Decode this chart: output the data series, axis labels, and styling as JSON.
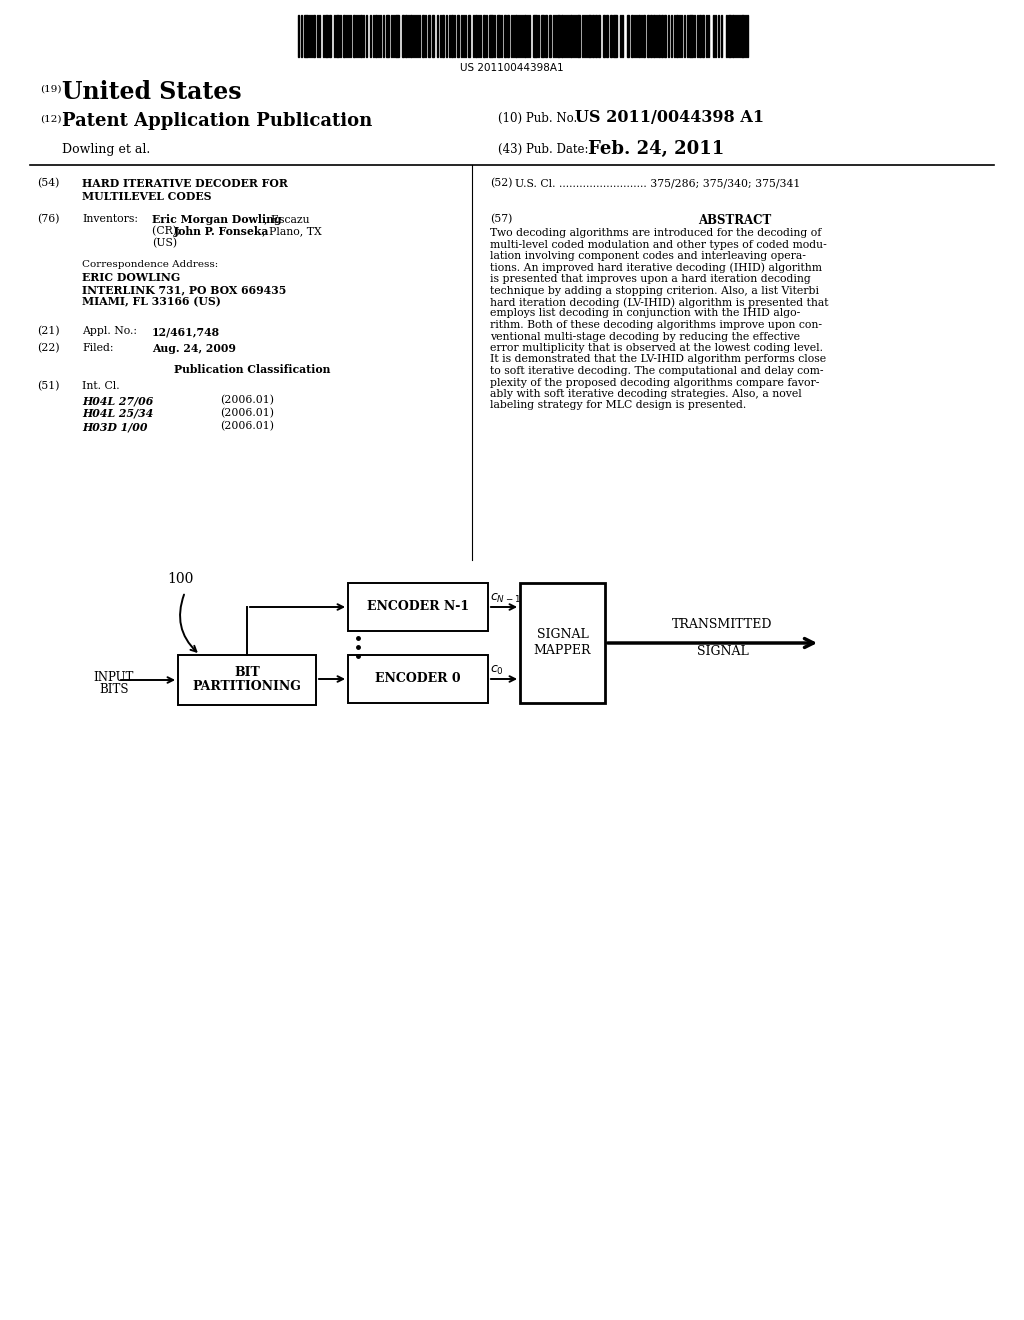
{
  "bg_color": "#ffffff",
  "barcode_text": "US 20110044398A1",
  "header19": "(19)",
  "title19": "United States",
  "header12": "(12)",
  "title12": "Patent Application Publication",
  "pub_no_label": "(10) Pub. No.:",
  "pub_no_value": "US 2011/0044398 A1",
  "pub_date_label": "(43) Pub. Date:",
  "pub_date_value": "Feb. 24, 2011",
  "author": "Dowling et al.",
  "f54_label": "(54)",
  "f54_line1": "HARD ITERATIVE DECODER FOR",
  "f54_line2": "MULTILEVEL CODES",
  "f52_label": "(52)",
  "f52_value": "U.S. Cl. .......................... 375/286; 375/340; 375/341",
  "f76_label": "(76)",
  "f76_field": "Inventors:",
  "inv_bold1": "Eric Morgan Dowling",
  "inv_rest1": ", Escazu",
  "inv_line2a": "(CR); ",
  "inv_bold2": "John P. Fonseka",
  "inv_rest2": ", Plano, TX",
  "inv_line3": "(US)",
  "corr_label": "Correspondence Address:",
  "corr_name": "ERIC DOWLING",
  "corr_line1": "INTERLINK 731, PO BOX 669435",
  "corr_line2": "MIAMI, FL 33166 (US)",
  "f21_label": "(21)",
  "f21_field": "Appl. No.:",
  "f21_value": "12/461,748",
  "f22_label": "(22)",
  "f22_field": "Filed:",
  "f22_value": "Aug. 24, 2009",
  "pub_class": "Publication Classification",
  "f51_label": "(51)",
  "f51_field": "Int. Cl.",
  "int_cl": [
    [
      "H04L 27/06",
      "(2006.01)"
    ],
    [
      "H04L 25/34",
      "(2006.01)"
    ],
    [
      "H03D 1/00",
      "(2006.01)"
    ]
  ],
  "f57_label": "(57)",
  "f57_title": "ABSTRACT",
  "abstract_lines": [
    "Two decoding algorithms are introduced for the decoding of",
    "multi-level coded modulation and other types of coded modu-",
    "lation involving component codes and interleaving opera-",
    "tions. An improved hard iterative decoding (IHID) algorithm",
    "is presented that improves upon a hard iteration decoding",
    "technique by adding a stopping criterion. Also, a list Viterbi",
    "hard iteration decoding (LV-IHID) algorithm is presented that",
    "employs list decoding in conjunction with the IHID algo-",
    "rithm. Both of these decoding algorithms improve upon con-",
    "ventional multi-stage decoding by reducing the effective",
    "error multiplicity that is observed at the lowest coding level.",
    "It is demonstrated that the LV-IHID algorithm performs close",
    "to soft iterative decoding. The computational and delay com-",
    "plexity of the proposed decoding algorithms compare favor-",
    "ably with soft iterative decoding strategies. Also, a novel",
    "labeling strategy for MLC design is presented."
  ],
  "diag_label": "100",
  "diag_input_line1": "INPUT",
  "diag_input_line2": "BITS",
  "diag_bp_line1": "BIT",
  "diag_bp_line2": "PARTITIONING",
  "diag_enc_n1": "ENCODER N-1",
  "diag_enc_0": "ENCODER 0",
  "diag_sm_line1": "SIGNAL",
  "diag_sm_line2": "MAPPER",
  "diag_tx_line1": "TRANSMITTED",
  "diag_tx_line2": "SIGNAL"
}
